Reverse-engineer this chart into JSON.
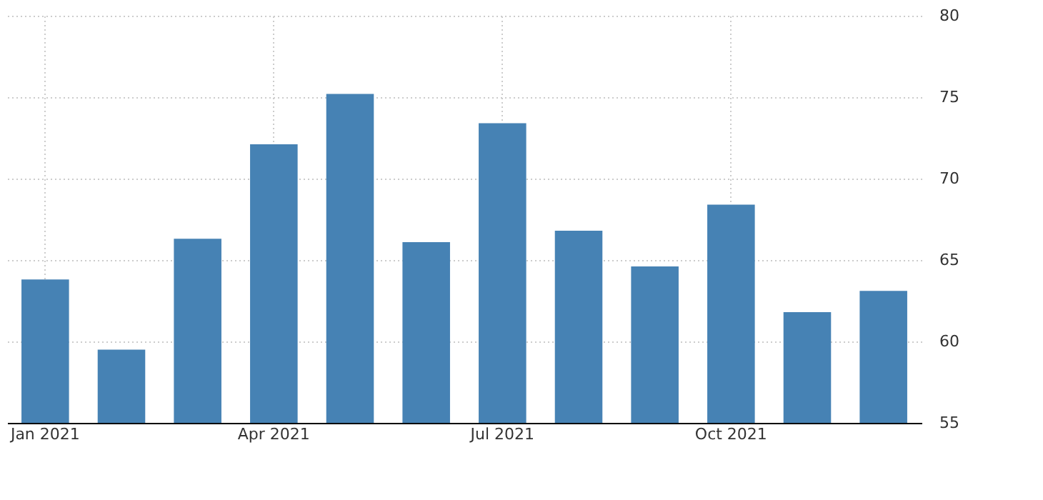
{
  "chart_data": {
    "type": "bar",
    "categories": [
      "Jan 2021",
      null,
      null,
      "Apr 2021",
      null,
      null,
      "Jul 2021",
      null,
      null,
      "Oct 2021",
      null,
      null
    ],
    "values": [
      63.8,
      59.5,
      66.3,
      72.1,
      75.2,
      66.1,
      73.4,
      66.8,
      64.6,
      68.4,
      61.8,
      63.1
    ],
    "color": "#4682b4",
    "ylim": [
      55,
      80
    ],
    "yticks": [
      55,
      60,
      65,
      70,
      75,
      80
    ],
    "grid": true
  }
}
